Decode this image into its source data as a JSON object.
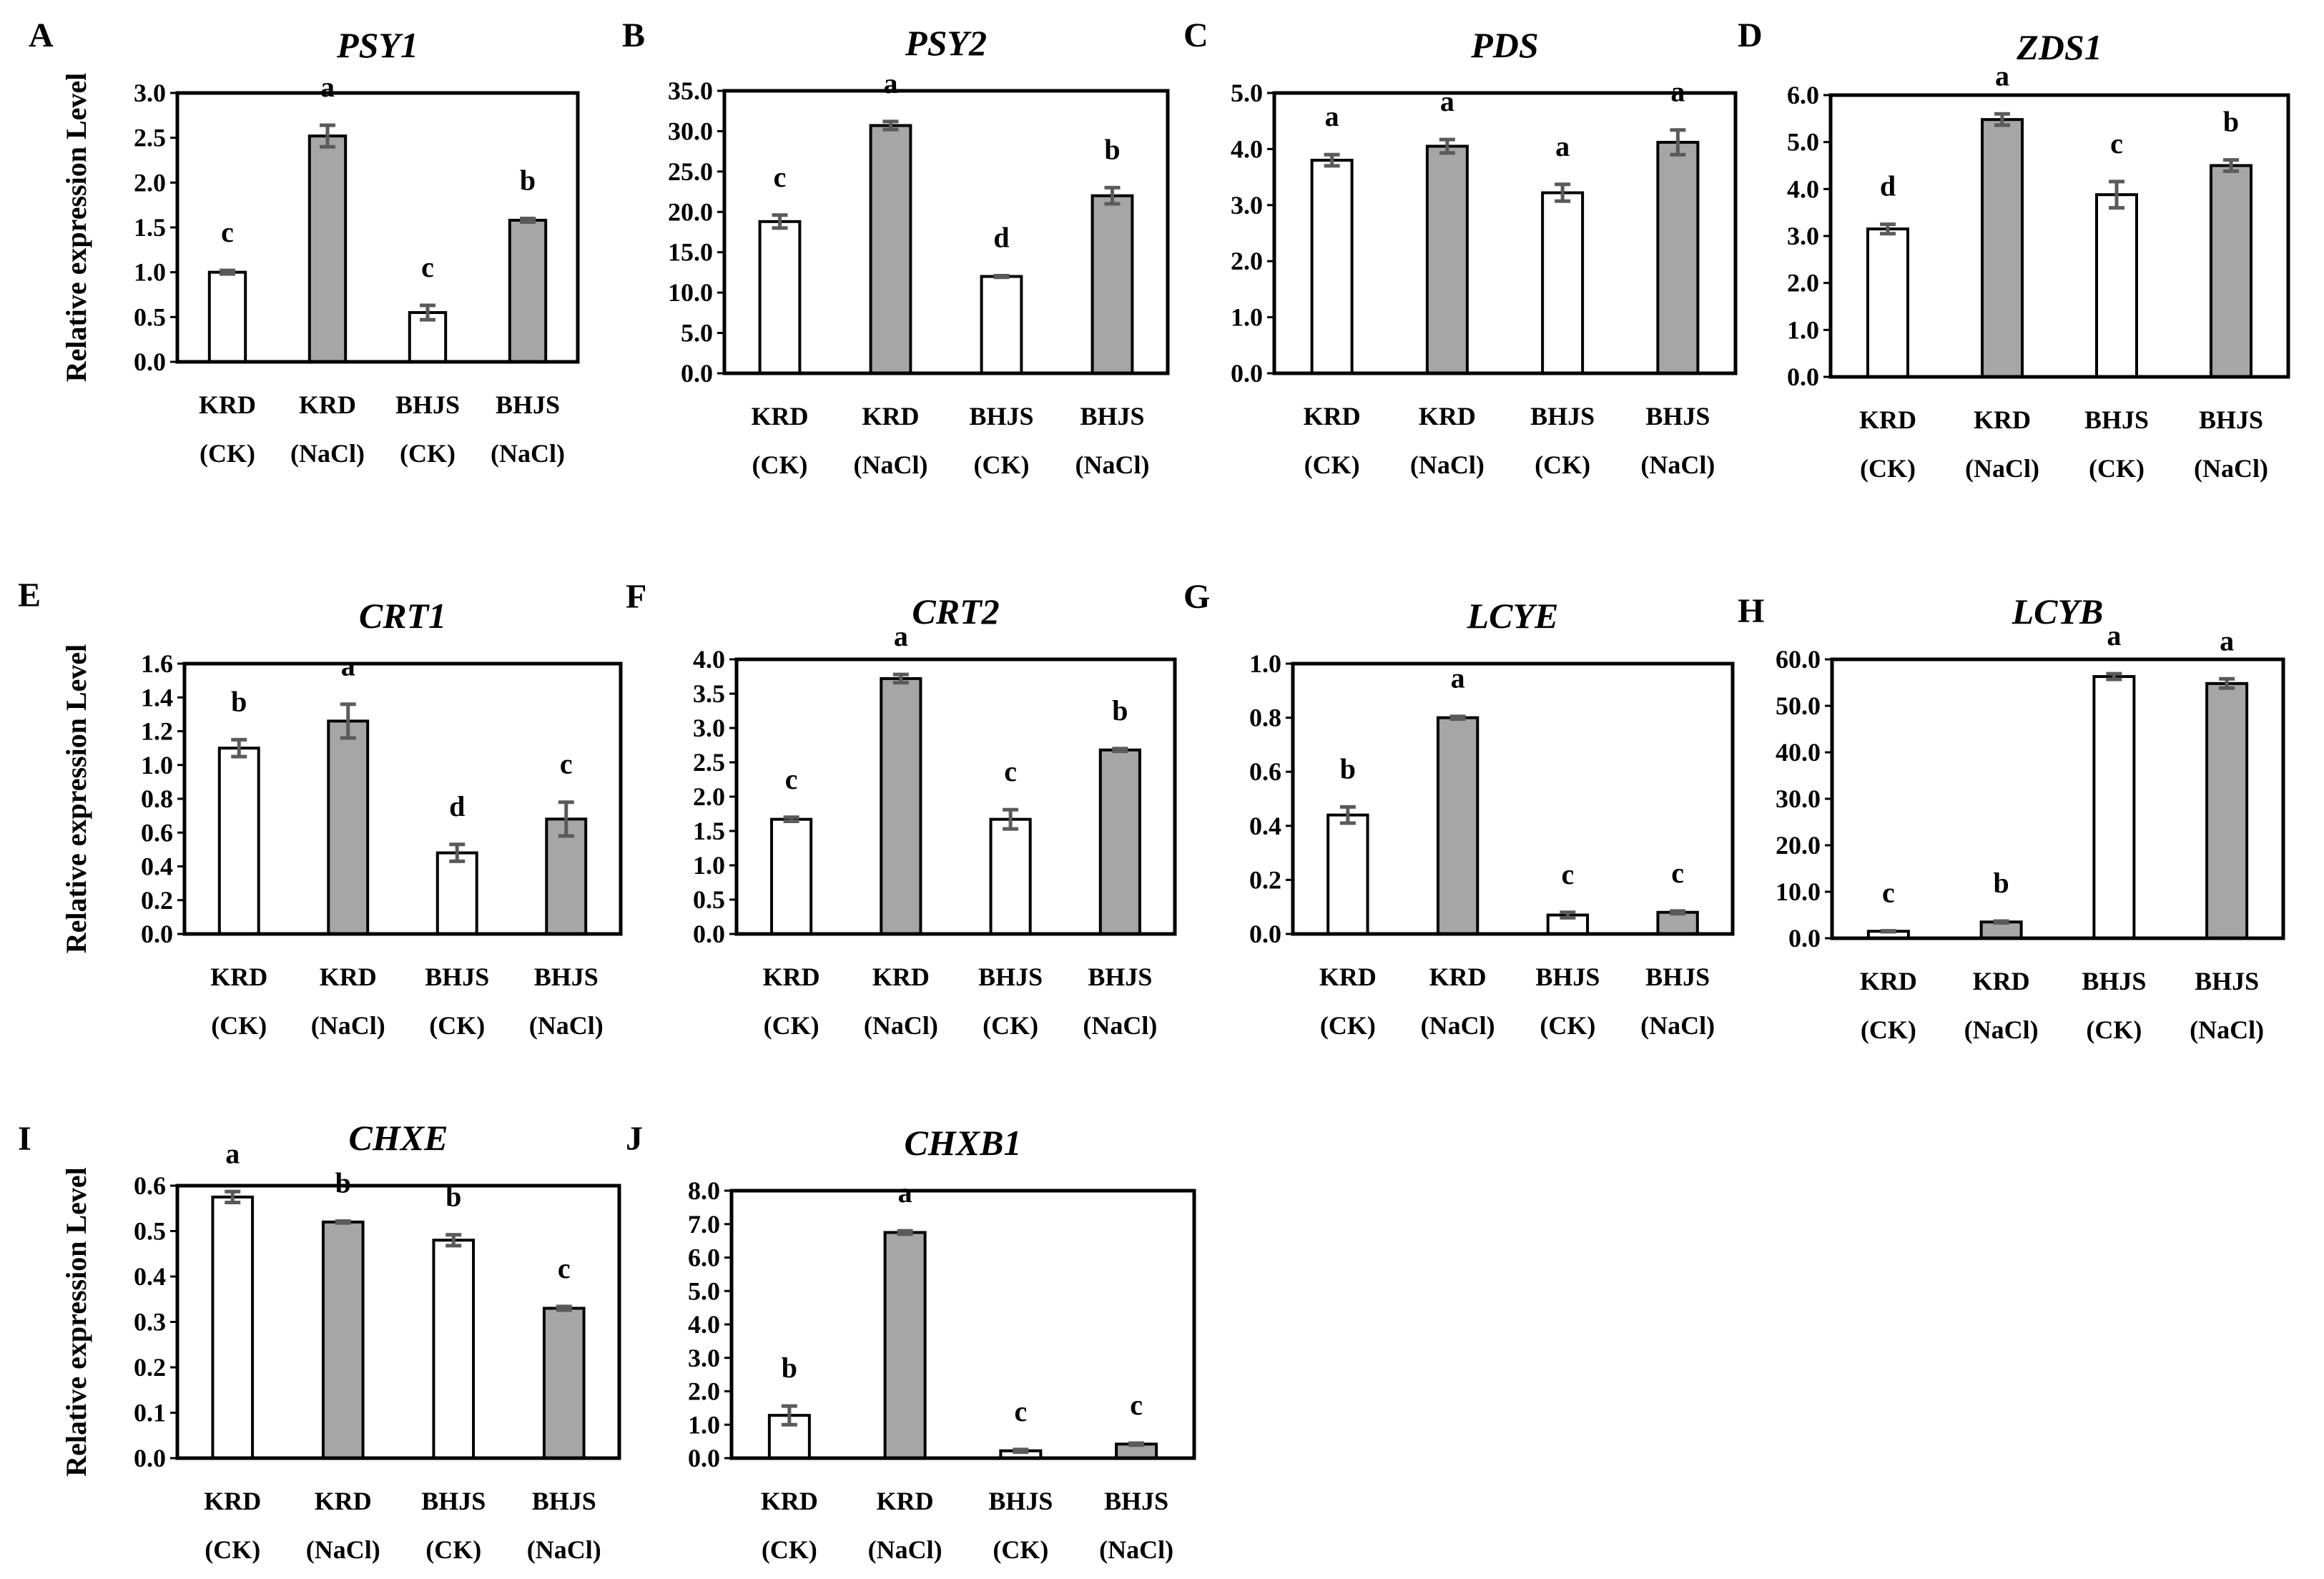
{
  "chart_data": [
    {
      "type": "bar",
      "panel": "A",
      "title": "PSY1",
      "ylabel": "Relative expression Level",
      "xlabel": "",
      "ylim": [
        0,
        3.0
      ],
      "yticks": [
        "0.0",
        "0.5",
        "1.0",
        "1.5",
        "2.0",
        "2.5",
        "3.0"
      ],
      "categories": [
        [
          "KRD",
          "(CK)"
        ],
        [
          "KRD",
          "(NaCl)"
        ],
        [
          "BHJS",
          "(CK)"
        ],
        [
          "BHJS",
          "(NaCl)"
        ]
      ],
      "values": [
        1.0,
        2.52,
        0.55,
        1.58
      ],
      "errors": [
        0.02,
        0.12,
        0.08,
        0.02
      ],
      "significance": [
        "c",
        "a",
        "c",
        "b"
      ],
      "fills": [
        "#ffffff",
        "#a6a6a6",
        "#ffffff",
        "#a6a6a6"
      ]
    },
    {
      "type": "bar",
      "panel": "B",
      "title": "PSY2",
      "ylabel": "",
      "xlabel": "",
      "ylim": [
        0,
        35.0
      ],
      "yticks": [
        "0.0",
        "5.0",
        "10.0",
        "15.0",
        "20.0",
        "25.0",
        "30.0",
        "35.0"
      ],
      "categories": [
        [
          "KRD",
          "(CK)"
        ],
        [
          "KRD",
          "(NaCl)"
        ],
        [
          "BHJS",
          "(CK)"
        ],
        [
          "BHJS",
          "(NaCl)"
        ]
      ],
      "values": [
        18.8,
        30.7,
        12.0,
        22.0
      ],
      "errors": [
        0.8,
        0.5,
        0.1,
        1.0
      ],
      "significance": [
        "c",
        "a",
        "d",
        "b"
      ],
      "fills": [
        "#ffffff",
        "#a6a6a6",
        "#ffffff",
        "#a6a6a6"
      ]
    },
    {
      "type": "bar",
      "panel": "C",
      "title": "PDS",
      "ylabel": "",
      "xlabel": "",
      "ylim": [
        0,
        5.0
      ],
      "yticks": [
        "0.0",
        "1.0",
        "2.0",
        "3.0",
        "4.0",
        "5.0"
      ],
      "categories": [
        [
          "KRD",
          "(CK)"
        ],
        [
          "KRD",
          "(NaCl)"
        ],
        [
          "BHJS",
          "(CK)"
        ],
        [
          "BHJS",
          "(NaCl)"
        ]
      ],
      "values": [
        3.8,
        4.05,
        3.22,
        4.12
      ],
      "errors": [
        0.1,
        0.12,
        0.15,
        0.22
      ],
      "significance": [
        "a",
        "a",
        "a",
        "a"
      ],
      "fills": [
        "#ffffff",
        "#a6a6a6",
        "#ffffff",
        "#a6a6a6"
      ]
    },
    {
      "type": "bar",
      "panel": "D",
      "title": "ZDS1",
      "ylabel": "",
      "xlabel": "",
      "ylim": [
        0,
        6.0
      ],
      "yticks": [
        "0.0",
        "1.0",
        "2.0",
        "3.0",
        "4.0",
        "5.0",
        "6.0"
      ],
      "categories": [
        [
          "KRD",
          "(CK)"
        ],
        [
          "KRD",
          "(NaCl)"
        ],
        [
          "BHJS",
          "(CK)"
        ],
        [
          "BHJS",
          "(NaCl)"
        ]
      ],
      "values": [
        3.15,
        5.48,
        3.88,
        4.5
      ],
      "errors": [
        0.1,
        0.12,
        0.28,
        0.12
      ],
      "significance": [
        "d",
        "a",
        "c",
        "b"
      ],
      "fills": [
        "#ffffff",
        "#a6a6a6",
        "#ffffff",
        "#a6a6a6"
      ]
    },
    {
      "type": "bar",
      "panel": "E",
      "title": "CRT1",
      "ylabel": "Relative expression Level",
      "xlabel": "",
      "ylim": [
        0,
        1.6
      ],
      "yticks": [
        "0.0",
        "0.2",
        "0.4",
        "0.6",
        "0.8",
        "1.0",
        "1.2",
        "1.4",
        "1.6"
      ],
      "categories": [
        [
          "KRD",
          "(CK)"
        ],
        [
          "KRD",
          "(NaCl)"
        ],
        [
          "BHJS",
          "(CK)"
        ],
        [
          "BHJS",
          "(NaCl)"
        ]
      ],
      "values": [
        1.1,
        1.26,
        0.48,
        0.68
      ],
      "errors": [
        0.05,
        0.1,
        0.05,
        0.1
      ],
      "significance": [
        "b",
        "a",
        "d",
        "c"
      ],
      "fills": [
        "#ffffff",
        "#a6a6a6",
        "#ffffff",
        "#a6a6a6"
      ]
    },
    {
      "type": "bar",
      "panel": "F",
      "title": "CRT2",
      "ylabel": "",
      "xlabel": "",
      "ylim": [
        0,
        4.0
      ],
      "yticks": [
        "0.0",
        "0.5",
        "1.0",
        "1.5",
        "2.0",
        "2.5",
        "3.0",
        "3.5",
        "4.0"
      ],
      "categories": [
        [
          "KRD",
          "(CK)"
        ],
        [
          "KRD",
          "(NaCl)"
        ],
        [
          "BHJS",
          "(CK)"
        ],
        [
          "BHJS",
          "(NaCl)"
        ]
      ],
      "values": [
        1.67,
        3.72,
        1.67,
        2.68
      ],
      "errors": [
        0.03,
        0.06,
        0.14,
        0.02
      ],
      "significance": [
        "c",
        "a",
        "c",
        "b"
      ],
      "fills": [
        "#ffffff",
        "#a6a6a6",
        "#ffffff",
        "#a6a6a6"
      ]
    },
    {
      "type": "bar",
      "panel": "G",
      "title": "LCYE",
      "ylabel": "",
      "xlabel": "",
      "ylim": [
        0,
        1.0
      ],
      "yticks": [
        "0.0",
        "0.2",
        "0.4",
        "0.6",
        "0.8",
        "1.0"
      ],
      "categories": [
        [
          "KRD",
          "(CK)"
        ],
        [
          "KRD",
          "(NaCl)"
        ],
        [
          "BHJS",
          "(CK)"
        ],
        [
          "BHJS",
          "(NaCl)"
        ]
      ],
      "values": [
        0.44,
        0.8,
        0.07,
        0.08
      ],
      "errors": [
        0.03,
        0.005,
        0.01,
        0.005
      ],
      "significance": [
        "b",
        "a",
        "c",
        "c"
      ],
      "fills": [
        "#ffffff",
        "#a6a6a6",
        "#ffffff",
        "#a6a6a6"
      ]
    },
    {
      "type": "bar",
      "panel": "H",
      "title": "LCYB",
      "ylabel": "",
      "xlabel": "",
      "ylim": [
        0,
        60.0
      ],
      "yticks": [
        "0.0",
        "10.0",
        "20.0",
        "30.0",
        "40.0",
        "50.0",
        "60.0"
      ],
      "categories": [
        [
          "KRD",
          "(CK)"
        ],
        [
          "KRD",
          "(NaCl)"
        ],
        [
          "BHJS",
          "(CK)"
        ],
        [
          "BHJS",
          "(NaCl)"
        ]
      ],
      "values": [
        1.5,
        3.5,
        56.3,
        54.8
      ],
      "errors": [
        0.1,
        0.2,
        0.6,
        1.0
      ],
      "significance": [
        "c",
        "b",
        "a",
        "a"
      ],
      "fills": [
        "#ffffff",
        "#a6a6a6",
        "#ffffff",
        "#a6a6a6"
      ]
    },
    {
      "type": "bar",
      "panel": "I",
      "title": "CHXE",
      "ylabel": "Relative expression Level",
      "xlabel": "",
      "ylim": [
        0,
        0.6
      ],
      "yticks": [
        "0.0",
        "0.1",
        "0.2",
        "0.3",
        "0.4",
        "0.5",
        "0.6"
      ],
      "categories": [
        [
          "KRD",
          "(CK)"
        ],
        [
          "KRD",
          "(NaCl)"
        ],
        [
          "BHJS",
          "(CK)"
        ],
        [
          "BHJS",
          "(NaCl)"
        ]
      ],
      "values": [
        0.575,
        0.52,
        0.48,
        0.33
      ],
      "errors": [
        0.012,
        0.002,
        0.012,
        0.004
      ],
      "significance": [
        "a",
        "b",
        "b",
        "c"
      ],
      "fills": [
        "#ffffff",
        "#a6a6a6",
        "#ffffff",
        "#a6a6a6"
      ]
    },
    {
      "type": "bar",
      "panel": "J",
      "title": "CHXB1",
      "ylabel": "",
      "xlabel": "",
      "ylim": [
        0,
        8.0
      ],
      "yticks": [
        "0.0",
        "1.0",
        "2.0",
        "3.0",
        "4.0",
        "5.0",
        "6.0",
        "7.0",
        "8.0"
      ],
      "categories": [
        [
          "KRD",
          "(CK)"
        ],
        [
          "KRD",
          "(NaCl)"
        ],
        [
          "BHJS",
          "(CK)"
        ],
        [
          "BHJS",
          "(NaCl)"
        ]
      ],
      "values": [
        1.28,
        6.75,
        0.22,
        0.42
      ],
      "errors": [
        0.28,
        0.05,
        0.04,
        0.03
      ],
      "significance": [
        "b",
        "a",
        "c",
        "c"
      ],
      "fills": [
        "#ffffff",
        "#a6a6a6",
        "#ffffff",
        "#a6a6a6"
      ]
    }
  ]
}
